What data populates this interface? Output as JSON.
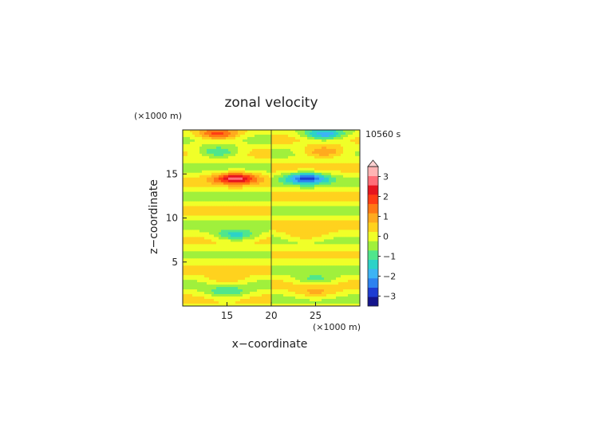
{
  "chart_data": {
    "type": "heatmap",
    "title": "zonal velocity",
    "xlabel": "x−coordinate",
    "ylabel": "z−coordinate",
    "x_unit": "(×1000 m)",
    "y_unit": "(×1000 m)",
    "time_label": "10560 s",
    "xlim": [
      10,
      30
    ],
    "ylim": [
      0,
      20
    ],
    "x_ticks": [
      "15",
      "20",
      "25"
    ],
    "x_tick_values": [
      15,
      20,
      25
    ],
    "y_ticks": [
      "5",
      "10",
      "15"
    ],
    "y_tick_values": [
      5,
      10,
      15
    ],
    "colorbar": {
      "tick_labels": [
        "3",
        "2",
        "1",
        "0",
        "−1",
        "−2",
        "−3"
      ],
      "tick_values": [
        3,
        2,
        1,
        0,
        -1,
        -2,
        -3
      ],
      "range": [
        -3.5,
        3.5
      ],
      "extend": "max",
      "colors": [
        "#14148c",
        "#1e3cd2",
        "#2d82f0",
        "#3cb4f5",
        "#2dd2c8",
        "#50e68c",
        "#a0f03c",
        "#f0ff28",
        "#ffd21e",
        "#ffaa1e",
        "#ff7814",
        "#ff3c14",
        "#e6141e",
        "#ff6e78",
        "#ffb4b4"
      ]
    },
    "features": [
      {
        "x": 16,
        "z": 14.5,
        "u": 2.5
      },
      {
        "x": 24,
        "z": 14.5,
        "u": -2.5
      },
      {
        "x": 14,
        "z": 17.5,
        "u": -1.5
      },
      {
        "x": 26,
        "z": 17.5,
        "u": 1.5
      },
      {
        "x": 14,
        "z": 19.5,
        "u": 2.0
      },
      {
        "x": 26,
        "z": 19.5,
        "u": -2.2
      },
      {
        "x": 16,
        "z": 8.0,
        "u": -1.5
      },
      {
        "x": 24,
        "z": 8.0,
        "u": 0.8
      },
      {
        "x": 15,
        "z": 3.0,
        "u": 0.8
      },
      {
        "x": 25,
        "z": 3.0,
        "u": -1.0
      },
      {
        "x": 15,
        "z": 1.5,
        "u": -1.2
      },
      {
        "x": 25,
        "z": 1.5,
        "u": 0.9
      }
    ]
  }
}
